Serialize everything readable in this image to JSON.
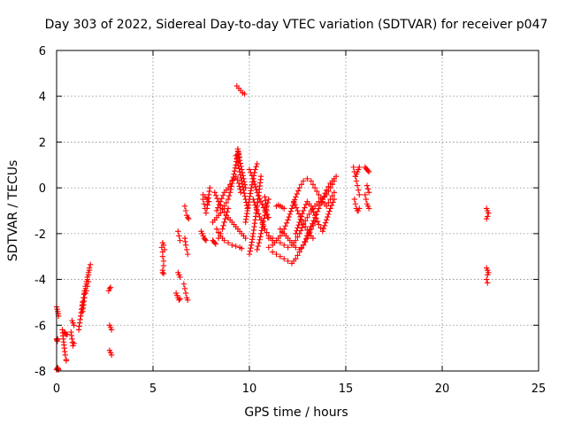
{
  "chart_data": {
    "type": "scatter",
    "title": "Day 303 of 2022, Sidereal Day-to-day VTEC variation (SDTVAR) for receiver p047",
    "xlabel": "GPS time / hours",
    "ylabel": "SDTVAR / TECUs",
    "xlim": [
      0,
      25
    ],
    "ylim": [
      -8,
      6
    ],
    "xticks": [
      "0",
      "5",
      "10",
      "15",
      "20",
      "25"
    ],
    "yticks": [
      "-8",
      "-6",
      "-4",
      "-2",
      "0",
      "2",
      "4",
      "6"
    ],
    "grid": true,
    "legend": "none",
    "marker": "plus",
    "color": "#ff0000",
    "segments": [
      {
        "x": [
          0.0,
          0.03,
          0.05,
          0.08,
          0.1
        ],
        "y": [
          -7.95,
          -7.9,
          -7.85,
          -7.9,
          -7.95
        ]
      },
      {
        "x": [
          0.0,
          0.03,
          0.06,
          0.08,
          0.1
        ],
        "y": [
          -5.2,
          -5.3,
          -5.4,
          -5.5,
          -5.6
        ]
      },
      {
        "x": [
          0.0,
          0.02,
          0.04,
          0.06
        ],
        "y": [
          -6.6,
          -6.65,
          -6.7,
          -6.6
        ]
      },
      {
        "x": [
          0.3,
          0.35,
          0.4,
          0.45,
          0.5,
          0.5
        ],
        "y": [
          -6.2,
          -6.6,
          -7.0,
          -7.3,
          -7.5,
          -7.55
        ]
      },
      {
        "x": [
          0.4,
          0.45,
          0.5,
          0.55
        ],
        "y": [
          -6.3,
          -6.35,
          -6.4,
          -6.4
        ]
      },
      {
        "x": [
          0.75,
          0.8,
          0.85,
          0.9
        ],
        "y": [
          -6.3,
          -6.6,
          -6.9,
          -6.8
        ]
      },
      {
        "x": [
          0.8,
          0.85,
          0.9
        ],
        "y": [
          -5.8,
          -5.9,
          -6.0
        ]
      },
      {
        "x": [
          1.15,
          1.2,
          1.25,
          1.3,
          1.35,
          1.4,
          1.45,
          1.5,
          1.55,
          1.6,
          1.65,
          1.7,
          1.75
        ],
        "y": [
          -6.2,
          -5.9,
          -5.6,
          -5.3,
          -5.0,
          -4.8,
          -4.5,
          -4.3,
          -4.1,
          -3.9,
          -3.7,
          -3.5,
          -3.35
        ]
      },
      {
        "x": [
          1.25,
          1.3,
          1.35,
          1.4,
          1.45,
          1.5,
          1.55,
          1.6,
          1.65,
          1.7
        ],
        "y": [
          -5.6,
          -5.3,
          -5.1,
          -4.8,
          -4.6,
          -4.4,
          -4.2,
          -4.0,
          -3.8,
          -3.6
        ]
      },
      {
        "x": [
          1.35,
          1.4,
          1.45,
          1.5,
          1.55,
          1.6,
          1.65
        ],
        "y": [
          -5.4,
          -5.1,
          -4.8,
          -4.6,
          -4.5,
          -4.3,
          -4.1
        ]
      },
      {
        "x": [
          2.7,
          2.75,
          2.8
        ],
        "y": [
          -4.5,
          -4.4,
          -4.35
        ]
      },
      {
        "x": [
          2.75,
          2.8,
          2.85
        ],
        "y": [
          -6.0,
          -6.1,
          -6.2
        ]
      },
      {
        "x": [
          2.75,
          2.8,
          2.85
        ],
        "y": [
          -7.1,
          -7.2,
          -7.3
        ]
      },
      {
        "x": [
          5.45,
          5.5,
          5.5,
          5.55,
          5.55,
          5.5,
          5.5,
          5.55
        ],
        "y": [
          -2.6,
          -2.8,
          -3.0,
          -3.2,
          -3.4,
          -3.6,
          -3.7,
          -3.75
        ]
      },
      {
        "x": [
          5.5,
          5.55,
          5.6
        ],
        "y": [
          -2.4,
          -2.5,
          -2.7
        ]
      },
      {
        "x": [
          6.2,
          6.25,
          6.3,
          6.35,
          6.4
        ],
        "y": [
          -4.6,
          -4.7,
          -4.8,
          -4.9,
          -4.85
        ]
      },
      {
        "x": [
          6.3,
          6.35,
          6.4
        ],
        "y": [
          -3.7,
          -3.8,
          -3.9
        ]
      },
      {
        "x": [
          6.3,
          6.35,
          6.4
        ],
        "y": [
          -1.9,
          -2.1,
          -2.3
        ]
      },
      {
        "x": [
          6.6,
          6.65,
          6.7,
          6.75,
          6.8
        ],
        "y": [
          -4.2,
          -4.4,
          -4.6,
          -4.8,
          -4.9
        ]
      },
      {
        "x": [
          6.65,
          6.7,
          6.75,
          6.8
        ],
        "y": [
          -2.2,
          -2.5,
          -2.7,
          -2.9
        ]
      },
      {
        "x": [
          6.65,
          6.7,
          6.75,
          6.8,
          6.85
        ],
        "y": [
          -0.8,
          -1.0,
          -1.2,
          -1.3,
          -1.35
        ]
      },
      {
        "x": [
          7.5,
          7.55,
          7.6,
          7.65,
          7.7,
          7.75
        ],
        "y": [
          -1.9,
          -2.0,
          -2.1,
          -2.2,
          -2.25,
          -2.3
        ]
      },
      {
        "x": [
          7.6,
          7.65,
          7.7,
          7.75,
          7.8,
          7.85,
          7.9,
          7.95
        ],
        "y": [
          -0.5,
          -0.7,
          -0.9,
          -1.1,
          -0.9,
          -0.6,
          -0.3,
          0.0
        ]
      },
      {
        "x": [
          7.6,
          7.7,
          7.8,
          7.9
        ],
        "y": [
          -0.3,
          -0.4,
          -0.5,
          -0.6
        ]
      },
      {
        "x": [
          8.1,
          8.15,
          8.2,
          8.25
        ],
        "y": [
          -2.3,
          -2.35,
          -2.4,
          -2.45
        ]
      },
      {
        "x": [
          8.1,
          8.3,
          8.5,
          8.7,
          8.9,
          9.0,
          9.1,
          9.2,
          9.3,
          9.35,
          9.4,
          9.45,
          9.5
        ],
        "y": [
          -1.5,
          -1.3,
          -1.1,
          -0.8,
          -0.5,
          -0.2,
          0.2,
          0.6,
          1.0,
          1.3,
          1.6,
          1.5,
          1.2
        ]
      },
      {
        "x": [
          8.3,
          8.5,
          8.7,
          8.9,
          9.1,
          9.3,
          9.45,
          9.55
        ],
        "y": [
          -1.0,
          -0.6,
          -0.2,
          0.0,
          0.3,
          0.5,
          0.2,
          -0.2
        ]
      },
      {
        "x": [
          8.3,
          8.5,
          8.7,
          8.9,
          9.1,
          9.3,
          9.5,
          9.6
        ],
        "y": [
          -1.8,
          -2.1,
          -2.3,
          -2.4,
          -2.5,
          -2.55,
          -2.6,
          -2.65
        ]
      },
      {
        "x": [
          8.2,
          8.4,
          8.6,
          8.8,
          9.0,
          9.2,
          9.4,
          9.6,
          9.8
        ],
        "y": [
          -0.2,
          -0.6,
          -0.9,
          -1.2,
          -1.4,
          -1.6,
          -1.8,
          -2.0,
          -2.2
        ]
      },
      {
        "x": [
          8.4,
          8.5,
          8.6,
          8.7,
          8.8,
          8.9
        ],
        "y": [
          -2.2,
          -2.0,
          -1.8,
          -1.5,
          -1.2,
          -0.9
        ]
      },
      {
        "x": [
          9.3,
          9.4,
          9.5,
          9.6,
          9.7,
          9.8,
          9.9
        ],
        "y": [
          1.4,
          1.1,
          0.7,
          0.3,
          -0.1,
          -0.5,
          -0.9
        ]
      },
      {
        "x": [
          9.4,
          9.5,
          9.6,
          9.7,
          9.8
        ],
        "y": [
          1.7,
          1.2,
          0.8,
          0.4,
          0.0
        ]
      },
      {
        "x": [
          9.35,
          9.45,
          9.55,
          9.65,
          9.75
        ],
        "y": [
          4.45,
          4.35,
          4.25,
          4.15,
          4.1
        ]
      },
      {
        "x": [
          9.8,
          9.9,
          10.0,
          10.1,
          10.2,
          10.3,
          10.4
        ],
        "y": [
          -1.5,
          -1.0,
          -0.5,
          0.0,
          0.4,
          0.8,
          1.05
        ]
      },
      {
        "x": [
          10.0,
          10.1,
          10.2,
          10.3,
          10.4,
          10.5,
          10.6
        ],
        "y": [
          -2.9,
          -2.5,
          -2.0,
          -1.4,
          -0.8,
          -0.2,
          0.5
        ]
      },
      {
        "x": [
          10.0,
          10.2,
          10.4,
          10.6,
          10.8,
          11.0
        ],
        "y": [
          0.8,
          0.4,
          -0.2,
          -0.6,
          -1.0,
          -1.3
        ]
      },
      {
        "x": [
          10.2,
          10.4,
          10.6,
          10.8,
          11.0,
          11.2
        ],
        "y": [
          -0.5,
          -1.0,
          -1.4,
          -1.8,
          -2.1,
          -2.3
        ]
      },
      {
        "x": [
          10.4,
          10.5,
          10.6,
          10.7,
          10.8,
          10.9,
          11.0
        ],
        "y": [
          -2.7,
          -2.4,
          -2.0,
          -1.6,
          -1.2,
          -0.8,
          -0.5
        ]
      },
      {
        "x": [
          10.8,
          10.85,
          10.9,
          10.95
        ],
        "y": [
          -0.4,
          -0.7,
          -1.0,
          -1.3
        ]
      },
      {
        "x": [
          11.4,
          11.5,
          11.6,
          11.7,
          11.8
        ],
        "y": [
          -0.8,
          -0.75,
          -0.8,
          -0.85,
          -0.9
        ]
      },
      {
        "x": [
          11.0,
          11.2,
          11.4,
          11.6,
          11.8,
          12.0,
          12.2,
          12.4,
          12.6,
          12.8,
          13.0,
          13.2,
          13.4,
          13.6,
          13.8,
          14.0,
          14.2,
          14.4
        ],
        "y": [
          -2.6,
          -2.5,
          -2.3,
          -2.1,
          -1.8,
          -1.4,
          -0.9,
          -0.4,
          0.0,
          0.3,
          0.4,
          0.3,
          0.0,
          -0.3,
          -0.6,
          -0.8,
          -0.5,
          -0.2
        ]
      },
      {
        "x": [
          11.2,
          11.4,
          11.6,
          11.8,
          12.0,
          12.2,
          12.4,
          12.6,
          12.8,
          13.0,
          13.2,
          13.4,
          13.6,
          13.8,
          14.0,
          14.2,
          14.4,
          14.5
        ],
        "y": [
          -2.8,
          -2.9,
          -3.0,
          -3.1,
          -3.2,
          -3.3,
          -3.1,
          -2.8,
          -2.5,
          -2.1,
          -1.7,
          -1.3,
          -0.9,
          -0.5,
          -0.1,
          0.2,
          0.4,
          0.5
        ]
      },
      {
        "x": [
          11.0,
          11.2,
          11.4,
          11.6,
          11.8,
          12.0,
          12.2,
          12.4,
          12.6,
          12.8,
          13.0,
          13.2,
          13.4,
          13.6,
          13.8,
          14.0,
          14.2,
          14.4
        ],
        "y": [
          -2.2,
          -2.2,
          -2.3,
          -2.4,
          -2.5,
          -2.6,
          -2.5,
          -2.3,
          -2.0,
          -1.6,
          -1.3,
          -1.0,
          -0.8,
          -0.6,
          -0.5,
          -0.3,
          0.0,
          0.3
        ]
      },
      {
        "x": [
          11.6,
          11.8,
          12.0,
          12.2,
          12.4,
          12.6,
          12.8,
          13.0,
          13.2,
          13.4
        ],
        "y": [
          -1.8,
          -2.0,
          -2.2,
          -2.4,
          -2.6,
          -2.7,
          -2.5,
          -2.2,
          -1.8,
          -1.5
        ]
      },
      {
        "x": [
          12.4,
          12.6,
          12.8,
          13.0,
          13.2,
          13.4,
          13.6,
          13.8,
          14.0,
          14.2,
          14.4
        ],
        "y": [
          -2.0,
          -1.5,
          -1.0,
          -0.6,
          -0.8,
          -1.2,
          -1.6,
          -1.9,
          -1.4,
          -0.9,
          -0.5
        ]
      },
      {
        "x": [
          12.3,
          12.5,
          12.7,
          12.9,
          13.1,
          13.3
        ],
        "y": [
          -0.6,
          -1.0,
          -1.4,
          -1.7,
          -2.0,
          -2.2
        ]
      },
      {
        "x": [
          15.4,
          15.45,
          15.5,
          15.55,
          15.6,
          15.65,
          15.7
        ],
        "y": [
          0.9,
          0.7,
          0.5,
          0.3,
          0.1,
          -0.1,
          -0.3
        ]
      },
      {
        "x": [
          15.45,
          15.5,
          15.55,
          15.6,
          15.65,
          15.7
        ],
        "y": [
          -0.5,
          -0.7,
          -0.9,
          -1.0,
          -1.0,
          -0.9
        ]
      },
      {
        "x": [
          15.5,
          15.55,
          15.6,
          15.65,
          15.7
        ],
        "y": [
          0.5,
          0.6,
          0.7,
          0.8,
          0.9
        ]
      },
      {
        "x": [
          16.0,
          16.05,
          16.1,
          16.15,
          16.2
        ],
        "y": [
          0.9,
          0.85,
          0.8,
          0.75,
          0.7
        ]
      },
      {
        "x": [
          16.0,
          16.05,
          16.1,
          16.15,
          16.2
        ],
        "y": [
          -0.3,
          -0.5,
          -0.7,
          -0.8,
          -0.9
        ]
      },
      {
        "x": [
          16.1,
          16.15,
          16.2
        ],
        "y": [
          0.1,
          -0.05,
          -0.2
        ]
      },
      {
        "x": [
          22.3,
          22.35,
          22.4,
          22.35,
          22.3
        ],
        "y": [
          -0.9,
          -1.0,
          -1.1,
          -1.25,
          -1.35
        ]
      },
      {
        "x": [
          22.3,
          22.35,
          22.4,
          22.35,
          22.3,
          22.35
        ],
        "y": [
          -3.5,
          -3.6,
          -3.7,
          -3.8,
          -4.0,
          -4.15
        ]
      }
    ]
  }
}
